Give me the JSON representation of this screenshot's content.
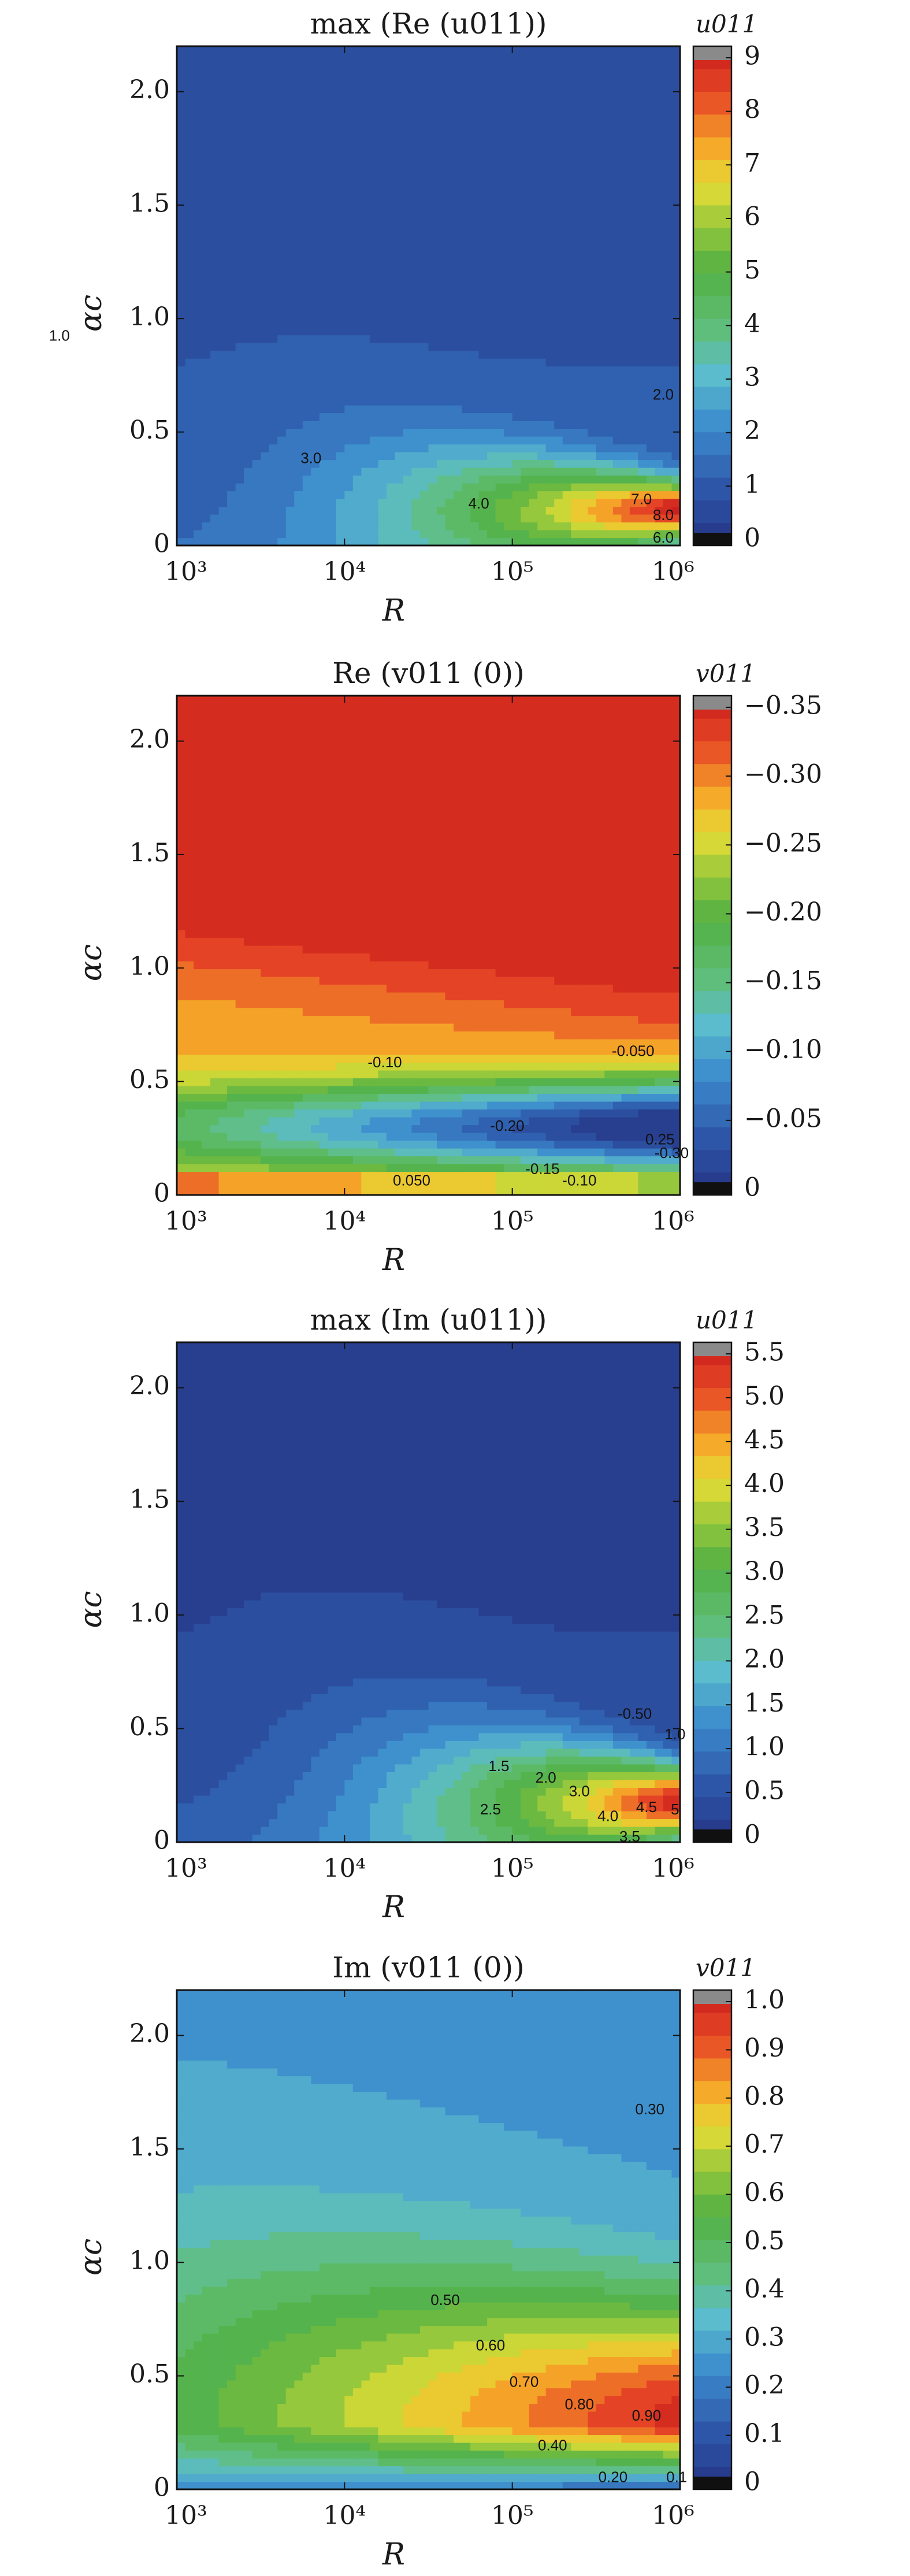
{
  "chart_data": [
    {
      "type": "heatmap",
      "title": "max (Re (u011))",
      "xlabel": "R",
      "ylabel": "αc",
      "x_scale": "log",
      "xlim": [
        1000,
        1000000
      ],
      "ylim": [
        0,
        2.2
      ],
      "x_ticks": [
        "10³",
        "10⁴",
        "10⁵",
        "10⁶"
      ],
      "y_ticks": [
        "0",
        "0.5",
        "1.0",
        "1.5",
        "2.0"
      ],
      "colorbar_title": "u011",
      "colorbar_range": [
        0,
        9
      ],
      "colorbar_ticks": [
        "0",
        "1",
        "2",
        "3",
        "4",
        "5",
        "6",
        "7",
        "8",
        "9"
      ],
      "contours": [
        {
          "level": "1.0",
          "label_at": [
            2.3,
            0.92
          ]
        },
        {
          "level": "2.0",
          "label_at": [
            5.9,
            0.66
          ]
        },
        {
          "level": "3.0",
          "label_at": [
            3.8,
            0.38
          ]
        },
        {
          "level": "4.0",
          "label_at": [
            4.8,
            0.18
          ]
        },
        {
          "level": "6.0",
          "label_at": [
            5.9,
            0.03
          ]
        },
        {
          "level": "7.0",
          "label_at": [
            5.77,
            0.2
          ]
        },
        {
          "level": "8.0",
          "label_at": [
            5.9,
            0.13
          ]
        }
      ]
    },
    {
      "type": "heatmap",
      "title": "Re (v011 (0))",
      "xlabel": "R",
      "ylabel": "αc",
      "x_scale": "log",
      "xlim": [
        1000,
        1000000
      ],
      "ylim": [
        0,
        2.2
      ],
      "x_ticks": [
        "10³",
        "10⁴",
        "10⁵",
        "10⁶"
      ],
      "y_ticks": [
        "0",
        "0.5",
        "1.0",
        "1.5",
        "2.0"
      ],
      "colorbar_title": "v011",
      "colorbar_range": [
        -0.35,
        0
      ],
      "colorbar_ticks": [
        "0",
        "−0.05",
        "−0.10",
        "−0.15",
        "−0.20",
        "−0.25",
        "−0.30",
        "−0.35"
      ],
      "contours": [
        {
          "level": "-0.050",
          "label_at": [
            5.72,
            0.63
          ]
        },
        {
          "level": "-0.10",
          "label_at": [
            4.24,
            0.58
          ]
        },
        {
          "level": "-0.20",
          "label_at": [
            4.97,
            0.3
          ]
        },
        {
          "level": "0.25",
          "label_at": [
            5.88,
            0.24
          ]
        },
        {
          "level": "-0.30",
          "label_at": [
            5.95,
            0.18
          ]
        },
        {
          "level": "-0.15",
          "label_at": [
            5.18,
            0.11
          ]
        },
        {
          "level": "-0.10",
          "label_at": [
            5.4,
            0.06
          ]
        },
        {
          "level": "0.050",
          "label_at": [
            4.4,
            0.06
          ]
        }
      ]
    },
    {
      "type": "heatmap",
      "title": "max (Im (u011))",
      "xlabel": "R",
      "ylabel": "αc",
      "x_scale": "log",
      "xlim": [
        1000,
        1000000
      ],
      "ylim": [
        0,
        2.2
      ],
      "x_ticks": [
        "10³",
        "10⁴",
        "10⁵",
        "10⁶"
      ],
      "y_ticks": [
        "0",
        "0.5",
        "1.0",
        "1.5",
        "2.0"
      ],
      "colorbar_title": "u011",
      "colorbar_range": [
        0,
        5.5
      ],
      "colorbar_ticks": [
        "0",
        "0.5",
        "1.0",
        "1.5",
        "2.0",
        "2.5",
        "3.0",
        "3.5",
        "4.0",
        "4.5",
        "5.0",
        "5.5"
      ],
      "contours": [
        {
          "level": "-0.50",
          "label_at": [
            5.73,
            0.56
          ]
        },
        {
          "level": "1.0",
          "label_at": [
            5.97,
            0.47
          ]
        },
        {
          "level": "1.5",
          "label_at": [
            4.92,
            0.33
          ]
        },
        {
          "level": "2.0",
          "label_at": [
            5.2,
            0.28
          ]
        },
        {
          "level": "2.5",
          "label_at": [
            4.87,
            0.14
          ]
        },
        {
          "level": "3.0",
          "label_at": [
            5.4,
            0.22
          ]
        },
        {
          "level": "3.5",
          "label_at": [
            5.7,
            0.02
          ]
        },
        {
          "level": "4.0",
          "label_at": [
            5.57,
            0.11
          ]
        },
        {
          "level": "4.5",
          "label_at": [
            5.8,
            0.15
          ]
        },
        {
          "level": "5",
          "label_at": [
            5.97,
            0.14
          ]
        }
      ]
    },
    {
      "type": "heatmap",
      "title": "Im (v011 (0))",
      "xlabel": "R",
      "ylabel": "αc",
      "x_scale": "log",
      "xlim": [
        1000,
        1000000
      ],
      "ylim": [
        0,
        2.2
      ],
      "x_ticks": [
        "10³",
        "10⁴",
        "10⁵",
        "10⁶"
      ],
      "y_ticks": [
        "0",
        "0.5",
        "1.0",
        "1.5",
        "2.0"
      ],
      "colorbar_title": "v011",
      "colorbar_range": [
        0,
        1.0
      ],
      "colorbar_ticks": [
        "0",
        "0.1",
        "0.2",
        "0.3",
        "0.4",
        "0.5",
        "0.6",
        "0.7",
        "0.8",
        "0.9",
        "1.0"
      ],
      "contours": [
        {
          "level": "0.30",
          "label_at": [
            5.82,
            1.67
          ]
        },
        {
          "level": "0.50",
          "label_at": [
            4.6,
            0.83
          ]
        },
        {
          "level": "0.60",
          "label_at": [
            4.87,
            0.63
          ]
        },
        {
          "level": "0.70",
          "label_at": [
            5.07,
            0.47
          ]
        },
        {
          "level": "0.80",
          "label_at": [
            5.4,
            0.37
          ]
        },
        {
          "level": "0.90",
          "label_at": [
            5.8,
            0.32
          ]
        },
        {
          "level": "0.40",
          "label_at": [
            5.24,
            0.19
          ]
        },
        {
          "level": "0.20",
          "label_at": [
            5.6,
            0.05
          ]
        },
        {
          "level": "0.1",
          "label_at": [
            5.98,
            0.05
          ]
        }
      ]
    }
  ]
}
